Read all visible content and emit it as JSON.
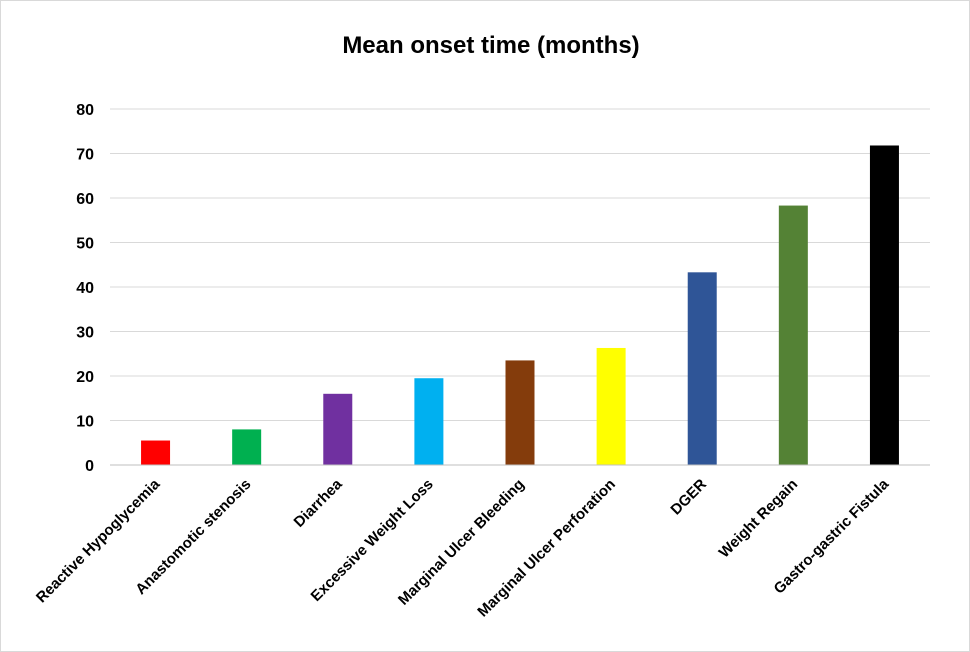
{
  "chart_data": {
    "type": "bar",
    "title": "Mean onset time (months)",
    "xlabel": "",
    "ylabel": "",
    "ylim": [
      0,
      80
    ],
    "yticks": [
      0,
      10,
      20,
      30,
      40,
      50,
      60,
      70,
      80
    ],
    "grid": true,
    "legend": "none",
    "categories": [
      "Reactive Hypoglycemia",
      "Anastomotic stenosis",
      "Diarrhea",
      "Excessive Weight Loss",
      "Marginal Ulcer Bleeding",
      "Marginal Ulcer Perforation",
      "DGER",
      "Weight Regain",
      "Gastro-gastric Fistula"
    ],
    "values": [
      5.5,
      8,
      16,
      19.5,
      23.5,
      26.3,
      43.3,
      58.3,
      71.8
    ],
    "colors": [
      "#ff0000",
      "#00b050",
      "#7030a0",
      "#00b0f0",
      "#843c0c",
      "#ffff00",
      "#2f5597",
      "#548235",
      "#000000"
    ]
  }
}
